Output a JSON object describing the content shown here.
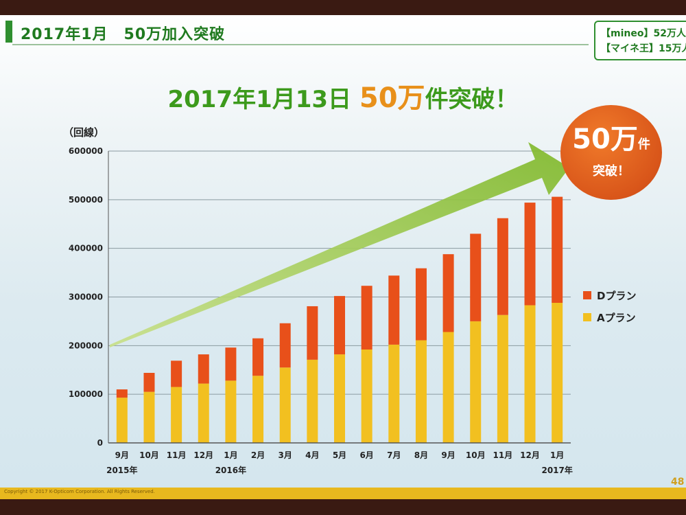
{
  "header": {
    "title": "2017年1月　50万加入突破",
    "stats": [
      "【mineo】52万人",
      "【マイネ王】15万人"
    ]
  },
  "headline": {
    "date": "2017年1月13日",
    "big": "50万",
    "tail": "件突破！"
  },
  "badge": {
    "main": "50万",
    "main_suffix": "件",
    "sub": "突破！"
  },
  "page_number": "48",
  "copyright": "Copyright © 2017 K-Opticom Corporation. All Rights Reserved.",
  "colors": {
    "d_plan": "#e8501a",
    "a_plan": "#f2c020",
    "arrow": "#8fc23a",
    "grid": "#8a9aa0"
  },
  "chart_data": {
    "type": "bar",
    "stacked": true,
    "unit_label": "（回線）",
    "ylim": [
      0,
      600000
    ],
    "yticks": [
      0,
      100000,
      200000,
      300000,
      400000,
      500000,
      600000
    ],
    "categories": [
      "9月",
      "10月",
      "11月",
      "12月",
      "1月",
      "2月",
      "3月",
      "4月",
      "5月",
      "6月",
      "7月",
      "8月",
      "9月",
      "10月",
      "11月",
      "12月",
      "1月"
    ],
    "year_labels": [
      {
        "index": 0,
        "label": "2015年"
      },
      {
        "index": 4,
        "label": "2016年"
      },
      {
        "index": 16,
        "label": "2017年"
      }
    ],
    "series": [
      {
        "name": "Aプラン",
        "color": "#f2c020",
        "values": [
          93000,
          105000,
          115000,
          122000,
          128000,
          138000,
          155000,
          171000,
          182000,
          192000,
          202000,
          211000,
          228000,
          250000,
          263000,
          283000,
          288000
        ]
      },
      {
        "name": "Dプラン",
        "color": "#e8501a",
        "values": [
          17000,
          39000,
          54000,
          60000,
          68000,
          77000,
          91000,
          110000,
          120000,
          131000,
          142000,
          148000,
          160000,
          180000,
          199000,
          211000,
          218000
        ]
      }
    ],
    "legend_position": "right",
    "grid": true
  }
}
